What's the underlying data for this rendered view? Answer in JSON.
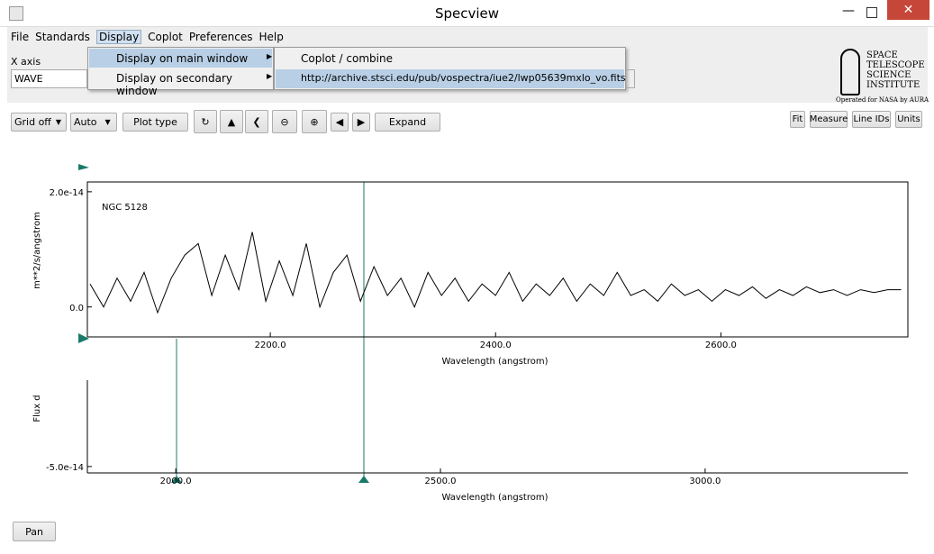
{
  "window": {
    "title": "Specview"
  },
  "menu": [
    "File",
    "Standards",
    "Display",
    "Coplot",
    "Preferences",
    "Help"
  ],
  "submenu": [
    "Display on main window",
    "Display on secondary window"
  ],
  "subsubmenu": [
    "Coplot / combine",
    "http://archive.stsci.edu/pub/vospectra/iue2/lwp05639mxlo_vo.fits"
  ],
  "xaxis": {
    "label": "X axis",
    "value": "WAVE"
  },
  "logo": {
    "lines": [
      "SPACE",
      "TELESCOPE",
      "SCIENCE",
      "INSTITUTE"
    ],
    "tagline": "Operated for NASA by AURA"
  },
  "toolbar": {
    "left": [
      "Grid off",
      "Auto",
      "Plot type",
      "Expand"
    ],
    "right": [
      "Fit",
      "Measure",
      "Line IDs",
      "Units"
    ]
  },
  "chart_data": [
    {
      "type": "line",
      "annotation": "NGC 5128",
      "ylabel": "m**2/s/angstrom",
      "xlabel": "Wavelength (angstrom)",
      "color": "#000000",
      "xlim": [
        2037.6,
        2766
      ],
      "ylim": [
        -5.2e-15,
        2.17e-14
      ],
      "xticks": [
        {
          "value": 2200,
          "label": "2200.0"
        },
        {
          "value": 2400,
          "label": "2400.0"
        },
        {
          "value": 2600,
          "label": "2600.0"
        }
      ],
      "yticks": [
        {
          "value": 0,
          "label": "0.0"
        },
        {
          "value": 2e-14,
          "label": "2.0e-14"
        }
      ],
      "x": [
        2040,
        2052,
        2064,
        2076,
        2088,
        2100,
        2112,
        2124,
        2136,
        2148,
        2160,
        2172,
        2184,
        2196,
        2208,
        2220,
        2232,
        2244,
        2256,
        2268,
        2280,
        2292,
        2304,
        2316,
        2328,
        2340,
        2352,
        2364,
        2376,
        2388,
        2400,
        2412,
        2424,
        2436,
        2448,
        2460,
        2472,
        2484,
        2496,
        2508,
        2520,
        2532,
        2544,
        2556,
        2568,
        2580,
        2592,
        2604,
        2616,
        2628,
        2640,
        2652,
        2664,
        2676,
        2688,
        2700,
        2712,
        2724,
        2736,
        2748,
        2760
      ],
      "values": [
        4e-15,
        0,
        5e-15,
        1e-15,
        6e-15,
        -1e-15,
        5e-15,
        9e-15,
        1.1e-14,
        2e-15,
        9e-15,
        3e-15,
        1.3e-14,
        1e-15,
        8e-15,
        2e-15,
        1.1e-14,
        0,
        6e-15,
        9e-15,
        1e-15,
        7e-15,
        2e-15,
        5e-15,
        0,
        6e-15,
        2e-15,
        5e-15,
        1e-15,
        4e-15,
        2e-15,
        6e-15,
        1e-15,
        4e-15,
        2e-15,
        5e-15,
        1e-15,
        4e-15,
        2e-15,
        6e-15,
        2e-15,
        3e-15,
        1e-15,
        4e-15,
        2e-15,
        3e-15,
        1e-15,
        3e-15,
        2e-15,
        3.5e-15,
        1.5e-15,
        3e-15,
        2e-15,
        3.5e-15,
        2.5e-15,
        3e-15,
        2e-15,
        3e-15,
        2.5e-15,
        3e-15,
        3e-15
      ]
    },
    {
      "type": "line",
      "ylabel": "Flux d",
      "xlabel": "Wavelength (angstrom)",
      "color": "#000000",
      "xlim": [
        1833,
        3383
      ],
      "ylim": [
        -5.2e-14,
        -2.3e-14
      ],
      "xticks": [
        {
          "value": 2000,
          "label": "2000.0"
        },
        {
          "value": 2500,
          "label": "2500.0"
        },
        {
          "value": 3000,
          "label": "3000.0"
        }
      ],
      "yticks": [
        {
          "value": -5e-14,
          "label": "-5.0e-14"
        }
      ]
    }
  ],
  "footer": {
    "button": "Pan"
  }
}
